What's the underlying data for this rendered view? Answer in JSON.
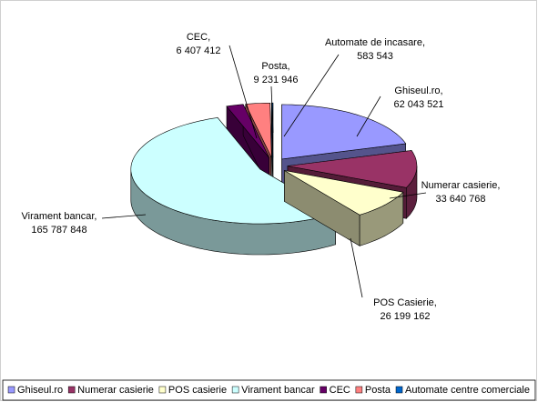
{
  "chart_data": {
    "type": "pie3d",
    "categories": [
      "Ghiseul.ro",
      "Numerar casierie",
      "POS casierie",
      "Virament bancar",
      "CEC",
      "Posta",
      "Automate centre comerciale"
    ],
    "point_labels": [
      "Ghiseul.ro,",
      "Numerar casierie,",
      "POS Casierie,",
      "Virament bancar,",
      "CEC,",
      "Posta,",
      "Automate de incasare,"
    ],
    "values": [
      62043521,
      33640768,
      26199162,
      165787848,
      6407412,
      9231946,
      583543
    ],
    "value_labels": [
      "62 043 521",
      "33 640 768",
      "26 199 162",
      "165 787 848",
      "6 407 412",
      "9 231 946",
      "583 543"
    ],
    "colors": [
      "#9999ff",
      "#993366",
      "#ffffcc",
      "#ccffff",
      "#660066",
      "#ff8080",
      "#0066cc"
    ],
    "legend": "bottom"
  }
}
